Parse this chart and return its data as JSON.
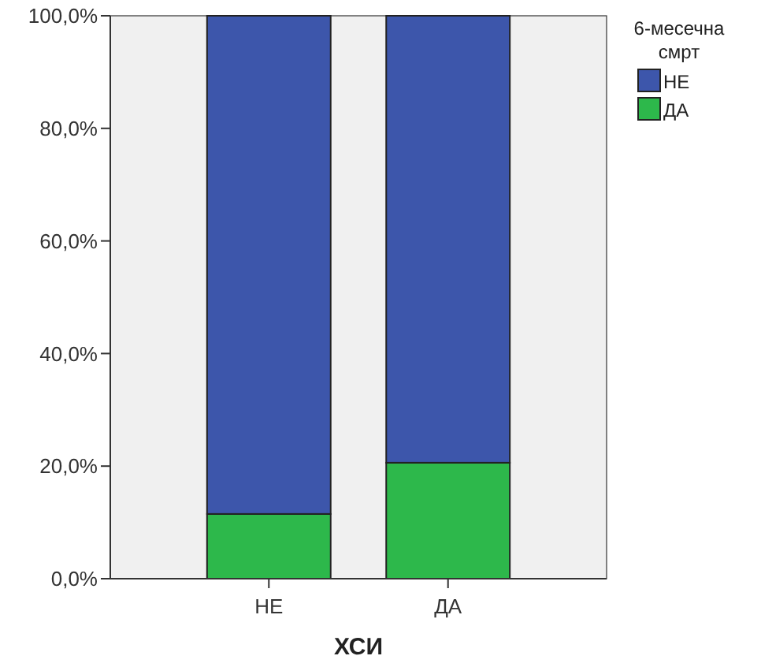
{
  "chart_data": {
    "type": "bar",
    "stacked": true,
    "xlabel": "ХСИ",
    "legend_title": "6-месечна смрт",
    "categories": [
      "НЕ",
      "ДА"
    ],
    "series": [
      {
        "name": "ДА",
        "color": "#2db84b",
        "values": [
          11.5,
          20.6
        ]
      },
      {
        "name": "НЕ",
        "color": "#3d56ab",
        "values": [
          88.5,
          79.4
        ]
      }
    ],
    "ylim": [
      0,
      100
    ],
    "yticks": [
      {
        "value": 0,
        "label": "0,0%"
      },
      {
        "value": 20,
        "label": "20,0%"
      },
      {
        "value": 40,
        "label": "40,0%"
      },
      {
        "value": 60,
        "label": "60,0%"
      },
      {
        "value": 80,
        "label": "80,0%"
      },
      {
        "value": 100,
        "label": "100,0%"
      }
    ],
    "legend": "top right"
  }
}
